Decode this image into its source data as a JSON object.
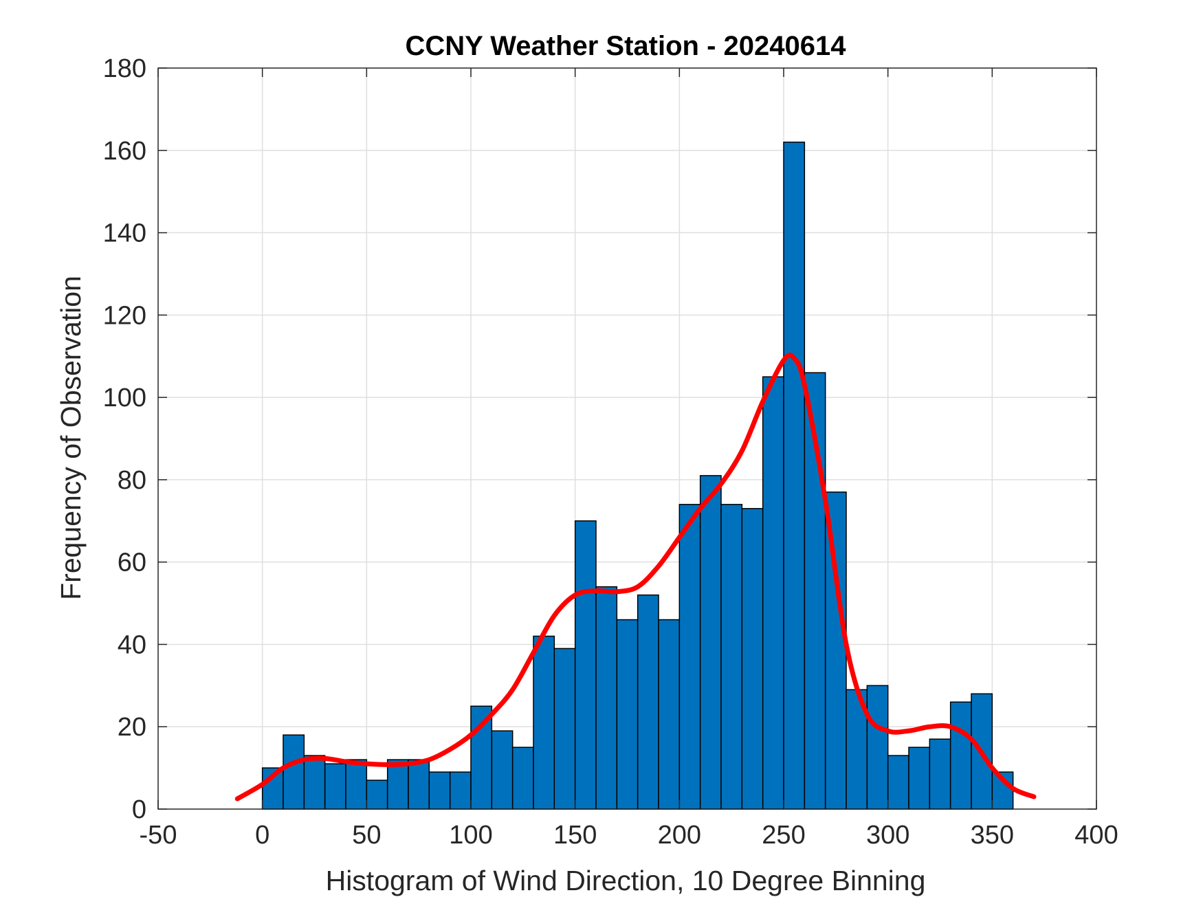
{
  "chart_data": {
    "type": "bar",
    "title": "CCNY Weather Station - 20240614",
    "xlabel": "Histogram of Wind Direction, 10 Degree Binning",
    "ylabel": "Frequency of Observation",
    "xlim": [
      -50,
      400
    ],
    "ylim": [
      0,
      180
    ],
    "xticks": [
      -50,
      0,
      50,
      100,
      150,
      200,
      250,
      300,
      350,
      400
    ],
    "yticks": [
      0,
      20,
      40,
      60,
      80,
      100,
      120,
      140,
      160,
      180
    ],
    "grid": true,
    "bin_width": 10,
    "bins": [
      {
        "x0": 0,
        "x1": 10,
        "count": 10
      },
      {
        "x0": 10,
        "x1": 20,
        "count": 18
      },
      {
        "x0": 20,
        "x1": 30,
        "count": 13
      },
      {
        "x0": 30,
        "x1": 40,
        "count": 11
      },
      {
        "x0": 40,
        "x1": 50,
        "count": 12
      },
      {
        "x0": 50,
        "x1": 60,
        "count": 7
      },
      {
        "x0": 60,
        "x1": 70,
        "count": 12
      },
      {
        "x0": 70,
        "x1": 80,
        "count": 12
      },
      {
        "x0": 80,
        "x1": 90,
        "count": 9
      },
      {
        "x0": 90,
        "x1": 100,
        "count": 9
      },
      {
        "x0": 100,
        "x1": 110,
        "count": 25
      },
      {
        "x0": 110,
        "x1": 120,
        "count": 19
      },
      {
        "x0": 120,
        "x1": 130,
        "count": 15
      },
      {
        "x0": 130,
        "x1": 140,
        "count": 42
      },
      {
        "x0": 140,
        "x1": 150,
        "count": 39
      },
      {
        "x0": 150,
        "x1": 160,
        "count": 70
      },
      {
        "x0": 160,
        "x1": 170,
        "count": 54
      },
      {
        "x0": 170,
        "x1": 180,
        "count": 46
      },
      {
        "x0": 180,
        "x1": 190,
        "count": 52
      },
      {
        "x0": 190,
        "x1": 200,
        "count": 46
      },
      {
        "x0": 200,
        "x1": 210,
        "count": 74
      },
      {
        "x0": 210,
        "x1": 220,
        "count": 81
      },
      {
        "x0": 220,
        "x1": 230,
        "count": 74
      },
      {
        "x0": 230,
        "x1": 240,
        "count": 73
      },
      {
        "x0": 240,
        "x1": 250,
        "count": 105
      },
      {
        "x0": 250,
        "x1": 260,
        "count": 162
      },
      {
        "x0": 260,
        "x1": 270,
        "count": 106
      },
      {
        "x0": 270,
        "x1": 280,
        "count": 77
      },
      {
        "x0": 280,
        "x1": 290,
        "count": 29
      },
      {
        "x0": 290,
        "x1": 300,
        "count": 30
      },
      {
        "x0": 300,
        "x1": 310,
        "count": 13
      },
      {
        "x0": 310,
        "x1": 320,
        "count": 15
      },
      {
        "x0": 320,
        "x1": 330,
        "count": 17
      },
      {
        "x0": 330,
        "x1": 340,
        "count": 26
      },
      {
        "x0": 340,
        "x1": 350,
        "count": 28
      },
      {
        "x0": 350,
        "x1": 360,
        "count": 9
      }
    ],
    "fit_curve": {
      "x": [
        -12,
        0,
        10,
        20,
        30,
        40,
        50,
        60,
        70,
        80,
        90,
        100,
        110,
        120,
        130,
        140,
        150,
        160,
        170,
        180,
        190,
        200,
        210,
        220,
        230,
        240,
        250,
        255,
        260,
        270,
        280,
        290,
        300,
        310,
        320,
        330,
        340,
        350,
        360,
        370
      ],
      "y": [
        2.5,
        6,
        10,
        12,
        12.3,
        11.5,
        11,
        10.8,
        11,
        12,
        14.5,
        18,
        23,
        29,
        38,
        47,
        52,
        53,
        52.8,
        54,
        59,
        66,
        73,
        79,
        87,
        99,
        109,
        109.5,
        103,
        75,
        40,
        23,
        19,
        19,
        20,
        20,
        17,
        10,
        5,
        3
      ]
    },
    "colors": {
      "bar_fill": "#0072BD",
      "bar_edge": "#000000",
      "fit_line": "#FF0000",
      "grid": "#DFDFDF",
      "axis": "#262626"
    }
  }
}
